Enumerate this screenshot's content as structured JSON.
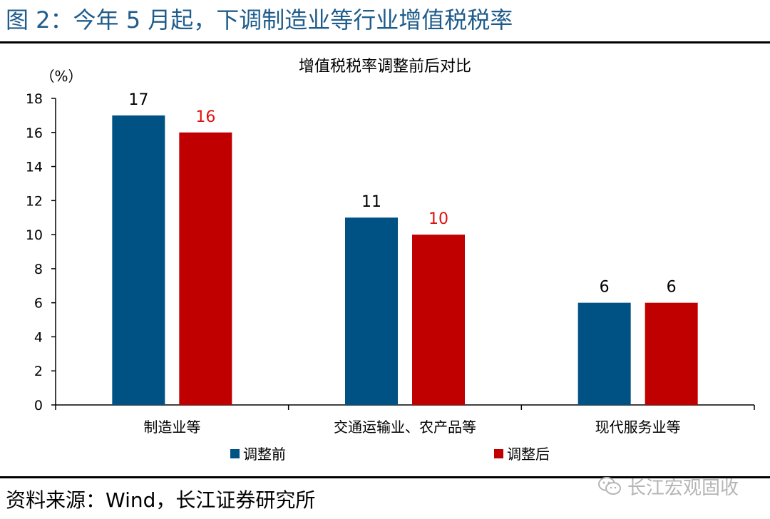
{
  "figure_title": "图 2：今年 5 月起，下调制造业等行业增值税税率",
  "source": "资料来源：Wind，长江证券研究所",
  "watermark": {
    "text": "长江宏观固收",
    "icon": "wechat-icon"
  },
  "colors": {
    "title": "#1f5c8b",
    "before": "#005184",
    "after": "#c00000",
    "after_label": "#e01010"
  },
  "chart_data": {
    "type": "bar",
    "title": "增值税税率调整前后对比",
    "unit_label": "（%）",
    "categories": [
      "制造业等",
      "交通运输业、农产品等",
      "现代服务业等"
    ],
    "series": [
      {
        "name": "调整前",
        "values": [
          17,
          11,
          6
        ],
        "color": "#005184"
      },
      {
        "name": "调整后",
        "values": [
          16,
          10,
          6
        ],
        "color": "#c00000"
      }
    ],
    "ylim": [
      0,
      18
    ],
    "yticks": [
      0,
      2,
      4,
      6,
      8,
      10,
      12,
      14,
      16,
      18
    ],
    "grid": false,
    "legend_position": "bottom",
    "data_labels": true
  }
}
